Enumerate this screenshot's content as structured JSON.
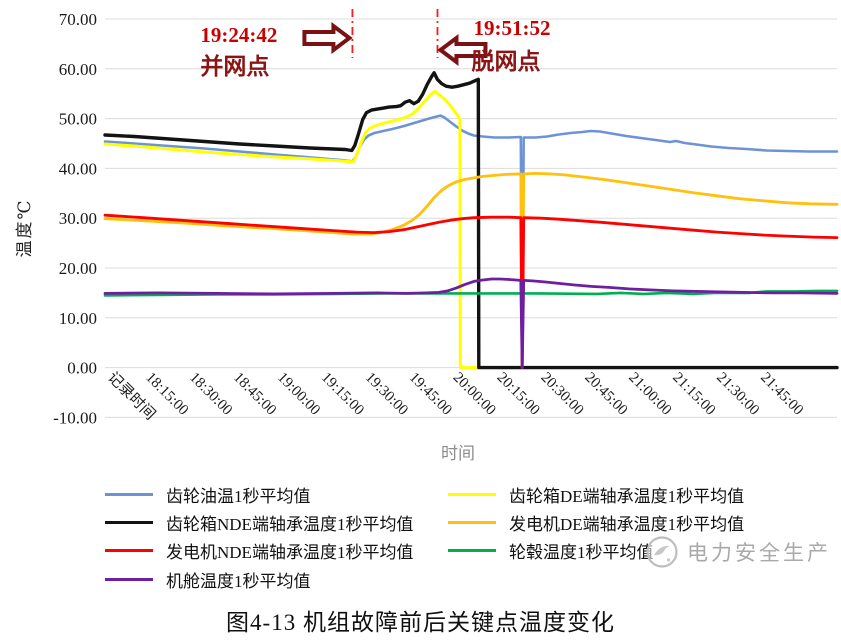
{
  "figure_caption": "图4-13 机组故障前后关键点温度变化",
  "watermark": {
    "icon": "round-logo",
    "text": "电力安全生产"
  },
  "chart_data": {
    "type": "line",
    "xlabel": "时间",
    "ylabel": "温度℃",
    "xlabel_color": "#8c8c8c",
    "axis_text_color": "#1a1a1a",
    "grid_color": "#dcdcdc",
    "grid": "horizontal",
    "ylim": [
      -10,
      70
    ],
    "ytick_labels": [
      "70.00",
      "60.00",
      "50.00",
      "40.00",
      "30.00",
      "20.00",
      "10.00",
      "0.00",
      "-10.00"
    ],
    "x_unit": "minutes-since-18:00",
    "xlim": [
      2,
      252
    ],
    "xticks": [
      {
        "m": 2,
        "label": "记录时间"
      },
      {
        "m": 15,
        "label": "18:15:00"
      },
      {
        "m": 30,
        "label": "18:30:00"
      },
      {
        "m": 45,
        "label": "18:45:00"
      },
      {
        "m": 60,
        "label": "19:00:00"
      },
      {
        "m": 75,
        "label": "19:15:00"
      },
      {
        "m": 90,
        "label": "19:30:00"
      },
      {
        "m": 105,
        "label": "19:45:00"
      },
      {
        "m": 120,
        "label": "20:00:00"
      },
      {
        "m": 135,
        "label": "20:15:00"
      },
      {
        "m": 150,
        "label": "20:30:00"
      },
      {
        "m": 165,
        "label": "20:45:00"
      },
      {
        "m": 180,
        "label": "21:00:00"
      },
      {
        "m": 195,
        "label": "21:15:00"
      },
      {
        "m": 210,
        "label": "21:30:00"
      },
      {
        "m": 225,
        "label": "21:45:00"
      }
    ],
    "legend": {
      "position": "bottom",
      "columns": 2
    },
    "annotations": [
      {
        "time": "19:24:42",
        "label": "并网点",
        "m": 86.5,
        "arrow_dir": "right",
        "line_color": "#ff1a1a",
        "time_color": "#c90000",
        "label_color": "#8b1515",
        "arrow_stroke": "#7a1215",
        "arrow_fill": "#ffffff"
      },
      {
        "time": "19:51:52",
        "label": "脱网点",
        "m": 115.55,
        "arrow_dir": "left",
        "line_color": "#ff1a1a",
        "time_color": "#c90000",
        "label_color": "#8b1515",
        "arrow_stroke": "#7a1215",
        "arrow_fill": "#ffffff"
      }
    ],
    "series": [
      {
        "name": "齿轮油温1秒平均值",
        "color": "#6d93d6",
        "width": 2.6,
        "points": [
          [
            2,
            45.4
          ],
          [
            12,
            45.0
          ],
          [
            24,
            44.5
          ],
          [
            36,
            44.0
          ],
          [
            48,
            43.4
          ],
          [
            60,
            42.8
          ],
          [
            70,
            42.3
          ],
          [
            78,
            41.9
          ],
          [
            84,
            41.6
          ],
          [
            86.5,
            41.4
          ],
          [
            87.5,
            42.2
          ],
          [
            89,
            44.3
          ],
          [
            90.5,
            45.8
          ],
          [
            92,
            46.6
          ],
          [
            94,
            47.1
          ],
          [
            97,
            47.5
          ],
          [
            100,
            47.9
          ],
          [
            104,
            48.5
          ],
          [
            108,
            49.2
          ],
          [
            112,
            49.9
          ],
          [
            114.5,
            50.3
          ],
          [
            116.5,
            50.6
          ],
          [
            118,
            50.2
          ],
          [
            120,
            49.3
          ],
          [
            122,
            48.4
          ],
          [
            124,
            47.6
          ],
          [
            126,
            47.0
          ],
          [
            128,
            46.6
          ],
          [
            131,
            46.4
          ],
          [
            135,
            46.2
          ],
          [
            140,
            46.2
          ],
          [
            144,
            46.3
          ],
          [
            144.5,
            0
          ],
          [
            145,
            46.2
          ],
          [
            149,
            46.2
          ],
          [
            153,
            46.4
          ],
          [
            157,
            46.8
          ],
          [
            161,
            47.1
          ],
          [
            165,
            47.3
          ],
          [
            168,
            47.5
          ],
          [
            171,
            47.4
          ],
          [
            175,
            47.0
          ],
          [
            180,
            46.5
          ],
          [
            185,
            46.1
          ],
          [
            190,
            45.7
          ],
          [
            195,
            45.3
          ],
          [
            197,
            45.5
          ],
          [
            200,
            45.1
          ],
          [
            204,
            44.8
          ],
          [
            209,
            44.4
          ],
          [
            215,
            44.1
          ],
          [
            221,
            43.9
          ],
          [
            228,
            43.6
          ],
          [
            235,
            43.5
          ],
          [
            242,
            43.4
          ],
          [
            252,
            43.4
          ]
        ]
      },
      {
        "name": "齿轮箱DE端轴承温度1秒平均值",
        "color": "#ffff00",
        "width": 3.0,
        "points": [
          [
            2,
            44.9
          ],
          [
            12,
            44.5
          ],
          [
            24,
            43.9
          ],
          [
            36,
            43.3
          ],
          [
            48,
            42.8
          ],
          [
            60,
            42.3
          ],
          [
            72,
            41.9
          ],
          [
            80,
            41.6
          ],
          [
            85,
            41.4
          ],
          [
            86.8,
            41.3
          ],
          [
            88,
            42.8
          ],
          [
            89.5,
            45.2
          ],
          [
            91,
            47.2
          ],
          [
            92.5,
            48.1
          ],
          [
            95,
            48.7
          ],
          [
            98,
            49.2
          ],
          [
            101,
            49.6
          ],
          [
            104,
            50.1
          ],
          [
            106,
            50.6
          ],
          [
            107.5,
            51.1
          ],
          [
            109,
            52.0
          ],
          [
            111,
            53.4
          ],
          [
            113,
            54.7
          ],
          [
            114.7,
            55.5
          ],
          [
            116,
            54.8
          ],
          [
            117.5,
            54.2
          ],
          [
            119,
            53.3
          ],
          [
            121,
            51.8
          ],
          [
            122.5,
            50.6
          ],
          [
            123.2,
            49.8
          ],
          [
            123.35,
            0
          ],
          [
            252,
            0
          ]
        ]
      },
      {
        "name": "齿轮箱NDE端轴承温度1秒平均值",
        "color": "#131313",
        "width": 3.4,
        "points": [
          [
            2,
            46.7
          ],
          [
            12,
            46.4
          ],
          [
            24,
            45.9
          ],
          [
            36,
            45.4
          ],
          [
            48,
            44.9
          ],
          [
            60,
            44.5
          ],
          [
            72,
            44.1
          ],
          [
            80,
            43.9
          ],
          [
            84,
            43.8
          ],
          [
            86.3,
            43.6
          ],
          [
            87.3,
            44.6
          ],
          [
            88.5,
            46.8
          ],
          [
            90,
            49.8
          ],
          [
            91.3,
            51.2
          ],
          [
            93,
            51.7
          ],
          [
            96,
            52.0
          ],
          [
            99,
            52.3
          ],
          [
            101.5,
            52.4
          ],
          [
            103,
            52.6
          ],
          [
            104.5,
            53.3
          ],
          [
            106,
            53.6
          ],
          [
            107.5,
            53.0
          ],
          [
            109,
            53.5
          ],
          [
            110.5,
            54.9
          ],
          [
            112,
            56.8
          ],
          [
            113.5,
            58.4
          ],
          [
            114.4,
            59.2
          ],
          [
            115.5,
            57.9
          ],
          [
            117,
            57.0
          ],
          [
            118.5,
            56.5
          ],
          [
            120.5,
            56.3
          ],
          [
            122.5,
            56.5
          ],
          [
            124.5,
            56.8
          ],
          [
            126.5,
            57.1
          ],
          [
            128.3,
            57.6
          ],
          [
            129.5,
            57.9
          ],
          [
            129.65,
            0
          ],
          [
            252,
            0
          ]
        ]
      },
      {
        "name": "发电机DE端轴承温度1秒平均值",
        "color": "#ffc010",
        "width": 2.8,
        "points": [
          [
            2,
            29.9
          ],
          [
            15,
            29.5
          ],
          [
            30,
            29.0
          ],
          [
            45,
            28.4
          ],
          [
            60,
            27.9
          ],
          [
            70,
            27.5
          ],
          [
            80,
            27.1
          ],
          [
            87,
            26.8
          ],
          [
            93,
            26.8
          ],
          [
            97,
            27.2
          ],
          [
            101,
            27.9
          ],
          [
            104,
            28.6
          ],
          [
            107,
            29.6
          ],
          [
            109.5,
            30.8
          ],
          [
            112,
            32.4
          ],
          [
            114.5,
            34.2
          ],
          [
            117,
            35.6
          ],
          [
            119.5,
            36.6
          ],
          [
            122,
            37.3
          ],
          [
            125,
            37.8
          ],
          [
            128,
            38.1
          ],
          [
            131,
            38.4
          ],
          [
            135,
            38.6
          ],
          [
            139,
            38.8
          ],
          [
            144,
            38.9
          ],
          [
            144.5,
            0
          ],
          [
            145,
            38.9
          ],
          [
            149,
            39.0
          ],
          [
            154,
            38.9
          ],
          [
            159,
            38.7
          ],
          [
            165,
            38.3
          ],
          [
            172,
            37.8
          ],
          [
            179,
            37.2
          ],
          [
            187,
            36.5
          ],
          [
            195,
            35.8
          ],
          [
            203,
            35.1
          ],
          [
            211,
            34.5
          ],
          [
            219,
            33.9
          ],
          [
            227,
            33.5
          ],
          [
            235,
            33.1
          ],
          [
            243,
            32.9
          ],
          [
            252,
            32.8
          ]
        ]
      },
      {
        "name": "发电机NDE端轴承温度1秒平均值",
        "color": "#fe0000",
        "width": 2.8,
        "points": [
          [
            2,
            30.6
          ],
          [
            15,
            30.1
          ],
          [
            30,
            29.5
          ],
          [
            45,
            28.9
          ],
          [
            60,
            28.3
          ],
          [
            70,
            27.9
          ],
          [
            80,
            27.5
          ],
          [
            88,
            27.2
          ],
          [
            94,
            27.1
          ],
          [
            99,
            27.3
          ],
          [
            104,
            27.7
          ],
          [
            108,
            28.2
          ],
          [
            112,
            28.7
          ],
          [
            116,
            29.2
          ],
          [
            120,
            29.6
          ],
          [
            124,
            29.9
          ],
          [
            128,
            30.1
          ],
          [
            134,
            30.2
          ],
          [
            140,
            30.2
          ],
          [
            144,
            30.1
          ],
          [
            144.5,
            0
          ],
          [
            145,
            30.1
          ],
          [
            151,
            30.0
          ],
          [
            157,
            29.8
          ],
          [
            164,
            29.5
          ],
          [
            171,
            29.2
          ],
          [
            179,
            28.8
          ],
          [
            187,
            28.4
          ],
          [
            195,
            28.0
          ],
          [
            203,
            27.6
          ],
          [
            211,
            27.2
          ],
          [
            219,
            26.9
          ],
          [
            227,
            26.6
          ],
          [
            235,
            26.4
          ],
          [
            244,
            26.2
          ],
          [
            252,
            26.1
          ]
        ]
      },
      {
        "name": "轮毂温度1秒平均值",
        "color": "#00b050",
        "width": 2.6,
        "points": [
          [
            2,
            14.5
          ],
          [
            20,
            14.6
          ],
          [
            40,
            14.7
          ],
          [
            60,
            14.7
          ],
          [
            80,
            14.8
          ],
          [
            100,
            14.9
          ],
          [
            125,
            14.9
          ],
          [
            150,
            14.9
          ],
          [
            170,
            14.8
          ],
          [
            178,
            15.0
          ],
          [
            186,
            14.8
          ],
          [
            194,
            15.0
          ],
          [
            203,
            14.8
          ],
          [
            210,
            15.0
          ],
          [
            222,
            15.0
          ],
          [
            228,
            15.3
          ],
          [
            238,
            15.3
          ],
          [
            245,
            15.4
          ],
          [
            252,
            15.4
          ]
        ]
      },
      {
        "name": "机舱温度1秒平均值",
        "color": "#6e1fa0",
        "width": 2.8,
        "points": [
          [
            2,
            14.9
          ],
          [
            20,
            15.0
          ],
          [
            40,
            14.9
          ],
          [
            60,
            14.8
          ],
          [
            80,
            14.9
          ],
          [
            95,
            15.0
          ],
          [
            105,
            14.9
          ],
          [
            112,
            15.0
          ],
          [
            116,
            15.1
          ],
          [
            119,
            15.4
          ],
          [
            122,
            16.0
          ],
          [
            125,
            16.7
          ],
          [
            128,
            17.3
          ],
          [
            131,
            17.6
          ],
          [
            134,
            17.8
          ],
          [
            137,
            17.8
          ],
          [
            140,
            17.7
          ],
          [
            144,
            17.5
          ],
          [
            144.5,
            0
          ],
          [
            145,
            17.5
          ],
          [
            148,
            17.4
          ],
          [
            152,
            17.2
          ],
          [
            157,
            16.9
          ],
          [
            162,
            16.6
          ],
          [
            168,
            16.3
          ],
          [
            174,
            16.1
          ],
          [
            181,
            15.8
          ],
          [
            188,
            15.6
          ],
          [
            196,
            15.4
          ],
          [
            204,
            15.3
          ],
          [
            212,
            15.2
          ],
          [
            220,
            15.1
          ],
          [
            230,
            15.0
          ],
          [
            240,
            15.0
          ],
          [
            252,
            14.9
          ]
        ]
      }
    ]
  }
}
